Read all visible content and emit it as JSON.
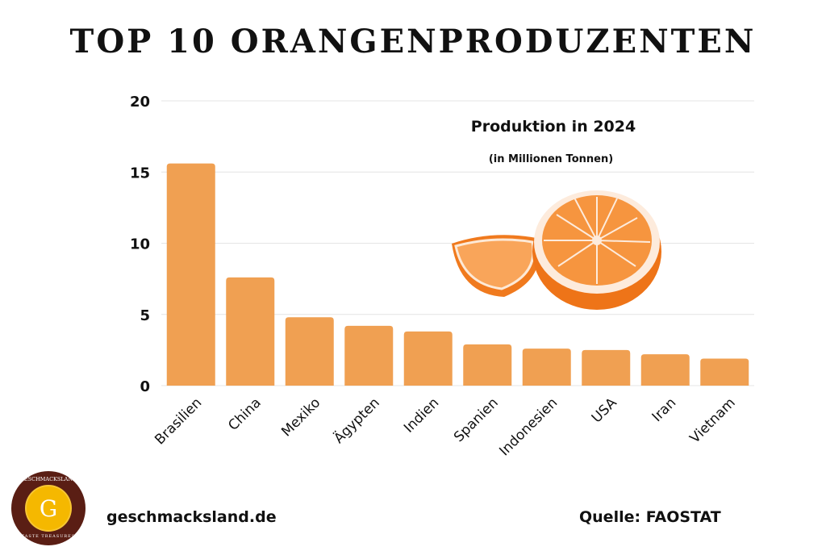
{
  "chart_data": {
    "type": "bar",
    "title": "TOP 10 ORANGENPRODUZENTEN",
    "subtitle": "Produktion in 2024",
    "unit_note": "(in Millionen Tonnen)",
    "categories": [
      "Brasilien",
      "China",
      "Mexiko",
      "Ägypten",
      "Indien",
      "Spanien",
      "Indonesien",
      "USA",
      "Iran",
      "Vietnam"
    ],
    "values": [
      15.6,
      7.6,
      4.8,
      4.2,
      3.8,
      2.9,
      2.6,
      2.5,
      2.2,
      1.9
    ],
    "ylim": [
      0,
      20
    ],
    "yticks": [
      0,
      5,
      10,
      15,
      20
    ],
    "grid": true,
    "bar_color": "#F0A052",
    "xlabel": "",
    "ylabel": ""
  },
  "logo": {
    "text_top": "GESCHMACKSLAND",
    "letter": "G",
    "text_bottom": "TASTE TREASURES"
  },
  "footer": {
    "website": "geschmacksland.de",
    "source": "Quelle: FAOSTAT"
  }
}
